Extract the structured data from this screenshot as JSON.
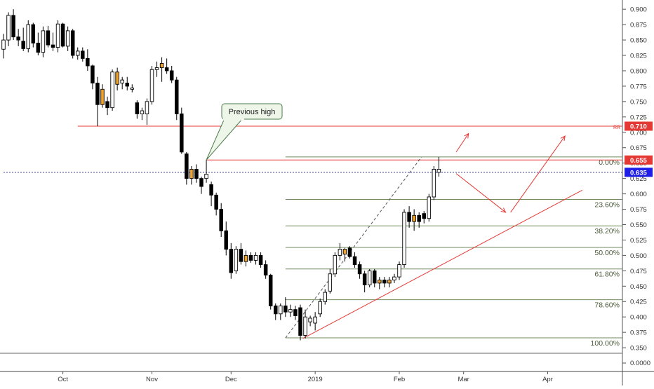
{
  "chart_data": {
    "type": "candlestick",
    "title": "",
    "price_axis": {
      "ticks": [
        "0.900",
        "0.875",
        "0.850",
        "0.825",
        "0.800",
        "0.775",
        "0.750",
        "0.725",
        "0.700",
        "0.675",
        "0.650",
        "0.625",
        "0.600",
        "0.575",
        "0.550",
        "0.525",
        "0.500",
        "0.475",
        "0.450",
        "0.425",
        "0.400",
        "0.375",
        "0.350"
      ],
      "ylim": [
        0.341,
        0.915
      ],
      "lower_pane_tick": "0.0000"
    },
    "time_axis": {
      "labels": [
        "Oct",
        "Nov",
        "Dec",
        "2019",
        "Feb",
        "Mar",
        "Apr"
      ],
      "label_bars": [
        12,
        30,
        46,
        63,
        80,
        93,
        110
      ]
    },
    "price_badges": [
      {
        "value": 0.71,
        "label": "0.710",
        "color": "#e53935",
        "text_color": "#ffffff"
      },
      {
        "value": 0.655,
        "label": "0.655",
        "color": "#e53935",
        "text_color": "#ffffff"
      },
      {
        "value": 0.635,
        "label": "0.635",
        "color": "#1e1ee6",
        "text_color": "#ffffff"
      }
    ],
    "rr_label": "RR",
    "horizontal_lines": [
      {
        "name": "resistance",
        "value": 0.71,
        "from_bar": 15,
        "color": "#e53935"
      },
      {
        "name": "previous-high-line",
        "value": 0.655,
        "from_bar": 41,
        "color": "#e53935"
      },
      {
        "name": "last-price-line",
        "value": 0.635,
        "from_bar": 0,
        "color": "#3a3aa0",
        "dashed": true
      }
    ],
    "callout": {
      "text": "Previous high",
      "anchor_bar": 41,
      "anchor_value": 0.655
    },
    "fibonacci": {
      "from_bar": 57,
      "levels": [
        {
          "label": "0.00%",
          "value": 0.66
        },
        {
          "label": "23.60%",
          "value": 0.591
        },
        {
          "label": "38.20%",
          "value": 0.548
        },
        {
          "label": "50.00%",
          "value": 0.513
        },
        {
          "label": "61.80%",
          "value": 0.478
        },
        {
          "label": "78.60%",
          "value": 0.428
        },
        {
          "label": "100.00%",
          "value": 0.366
        }
      ]
    },
    "trend_lines": [
      {
        "name": "ascending-trendline",
        "from": {
          "bar": 60.5,
          "value": 0.365
        },
        "to": {
          "bar": 117,
          "value": 0.606
        },
        "color": "#e53935",
        "dashed": false
      },
      {
        "name": "fib-diagonal",
        "from": {
          "bar": 57,
          "value": 0.366
        },
        "to": {
          "bar": 84.5,
          "value": 0.66
        },
        "color": "#555555",
        "dashed": true
      }
    ],
    "arrows": [
      {
        "name": "arrow-up-breakout",
        "from": {
          "bar": 91.5,
          "value": 0.668
        },
        "to": {
          "bar": 94,
          "value": 0.698
        }
      },
      {
        "name": "arrow-down-pullback",
        "from": {
          "bar": 91.5,
          "value": 0.633
        },
        "to": {
          "bar": 101.5,
          "value": 0.57
        }
      },
      {
        "name": "arrow-up-rally",
        "from": {
          "bar": 102.5,
          "value": 0.57
        },
        "to": {
          "bar": 113.5,
          "value": 0.694
        }
      }
    ],
    "candle_colors": {
      "up_body": "#ffffff",
      "up_border": "#000000",
      "down_body": "#000000",
      "neutral_body": "#f0a32a"
    },
    "candles": [
      {
        "o": 0.835,
        "h": 0.86,
        "l": 0.82,
        "c": 0.85
      },
      {
        "o": 0.85,
        "h": 0.895,
        "l": 0.84,
        "c": 0.89
      },
      {
        "o": 0.89,
        "h": 0.9,
        "l": 0.85,
        "c": 0.855
      },
      {
        "o": 0.855,
        "h": 0.868,
        "l": 0.84,
        "c": 0.85
      },
      {
        "o": 0.848,
        "h": 0.87,
        "l": 0.832,
        "c": 0.836
      },
      {
        "o": 0.836,
        "h": 0.882,
        "l": 0.83,
        "c": 0.875
      },
      {
        "o": 0.875,
        "h": 0.878,
        "l": 0.838,
        "c": 0.845
      },
      {
        "o": 0.845,
        "h": 0.862,
        "l": 0.825,
        "c": 0.83
      },
      {
        "o": 0.83,
        "h": 0.872,
        "l": 0.822,
        "c": 0.865
      },
      {
        "o": 0.865,
        "h": 0.873,
        "l": 0.838,
        "c": 0.842
      },
      {
        "o": 0.842,
        "h": 0.862,
        "l": 0.832,
        "c": 0.838
      },
      {
        "o": 0.838,
        "h": 0.882,
        "l": 0.83,
        "c": 0.876
      },
      {
        "o": 0.876,
        "h": 0.878,
        "l": 0.838,
        "c": 0.84
      },
      {
        "o": 0.84,
        "h": 0.872,
        "l": 0.832,
        "c": 0.865
      },
      {
        "o": 0.865,
        "h": 0.868,
        "l": 0.82,
        "c": 0.825
      },
      {
        "o": 0.825,
        "h": 0.838,
        "l": 0.818,
        "c": 0.832
      },
      {
        "o": 0.832,
        "h": 0.838,
        "l": 0.815,
        "c": 0.82
      },
      {
        "o": 0.82,
        "h": 0.835,
        "l": 0.8,
        "c": 0.808
      },
      {
        "o": 0.808,
        "h": 0.81,
        "l": 0.77,
        "c": 0.78
      },
      {
        "o": 0.78,
        "h": 0.79,
        "l": 0.71,
        "c": 0.745
      },
      {
        "o": 0.745,
        "h": 0.778,
        "l": 0.74,
        "c": 0.77,
        "neutral": true
      },
      {
        "o": 0.75,
        "h": 0.758,
        "l": 0.728,
        "c": 0.74
      },
      {
        "o": 0.74,
        "h": 0.802,
        "l": 0.735,
        "c": 0.798
      },
      {
        "o": 0.798,
        "h": 0.805,
        "l": 0.768,
        "c": 0.778,
        "neutral": true
      },
      {
        "o": 0.78,
        "h": 0.79,
        "l": 0.77,
        "c": 0.785
      },
      {
        "o": 0.78,
        "h": 0.79,
        "l": 0.768,
        "c": 0.775
      },
      {
        "o": 0.77,
        "h": 0.778,
        "l": 0.765,
        "c": 0.772
      },
      {
        "o": 0.748,
        "h": 0.752,
        "l": 0.722,
        "c": 0.73
      },
      {
        "o": 0.73,
        "h": 0.74,
        "l": 0.72,
        "c": 0.735
      },
      {
        "o": 0.73,
        "h": 0.755,
        "l": 0.712,
        "c": 0.75
      },
      {
        "o": 0.75,
        "h": 0.808,
        "l": 0.745,
        "c": 0.802
      },
      {
        "o": 0.802,
        "h": 0.815,
        "l": 0.79,
        "c": 0.805
      },
      {
        "o": 0.805,
        "h": 0.822,
        "l": 0.782,
        "c": 0.812,
        "neutral": true
      },
      {
        "o": 0.805,
        "h": 0.82,
        "l": 0.795,
        "c": 0.8
      },
      {
        "o": 0.8,
        "h": 0.808,
        "l": 0.78,
        "c": 0.785
      },
      {
        "o": 0.785,
        "h": 0.79,
        "l": 0.72,
        "c": 0.73
      },
      {
        "o": 0.73,
        "h": 0.74,
        "l": 0.665,
        "c": 0.668
      },
      {
        "o": 0.665,
        "h": 0.668,
        "l": 0.615,
        "c": 0.625
      },
      {
        "o": 0.625,
        "h": 0.645,
        "l": 0.615,
        "c": 0.64,
        "neutral": true
      },
      {
        "o": 0.64,
        "h": 0.648,
        "l": 0.618,
        "c": 0.625
      },
      {
        "o": 0.625,
        "h": 0.628,
        "l": 0.6,
        "c": 0.612
      },
      {
        "o": 0.625,
        "h": 0.655,
        "l": 0.618,
        "c": 0.632
      },
      {
        "o": 0.615,
        "h": 0.62,
        "l": 0.58,
        "c": 0.598
      },
      {
        "o": 0.598,
        "h": 0.602,
        "l": 0.565,
        "c": 0.575
      },
      {
        "o": 0.575,
        "h": 0.585,
        "l": 0.53,
        "c": 0.54
      },
      {
        "o": 0.54,
        "h": 0.555,
        "l": 0.5,
        "c": 0.51
      },
      {
        "o": 0.51,
        "h": 0.52,
        "l": 0.462,
        "c": 0.472
      },
      {
        "o": 0.475,
        "h": 0.515,
        "l": 0.47,
        "c": 0.51
      },
      {
        "o": 0.51,
        "h": 0.52,
        "l": 0.485,
        "c": 0.49
      },
      {
        "o": 0.49,
        "h": 0.508,
        "l": 0.482,
        "c": 0.5,
        "neutral": true
      },
      {
        "o": 0.5,
        "h": 0.505,
        "l": 0.488,
        "c": 0.492
      },
      {
        "o": 0.492,
        "h": 0.505,
        "l": 0.485,
        "c": 0.5
      },
      {
        "o": 0.5,
        "h": 0.505,
        "l": 0.48,
        "c": 0.485
      },
      {
        "o": 0.485,
        "h": 0.492,
        "l": 0.462,
        "c": 0.468
      },
      {
        "o": 0.468,
        "h": 0.47,
        "l": 0.412,
        "c": 0.418
      },
      {
        "o": 0.418,
        "h": 0.422,
        "l": 0.395,
        "c": 0.405
      },
      {
        "o": 0.405,
        "h": 0.422,
        "l": 0.395,
        "c": 0.418
      },
      {
        "o": 0.418,
        "h": 0.432,
        "l": 0.4,
        "c": 0.408
      },
      {
        "o": 0.408,
        "h": 0.42,
        "l": 0.4,
        "c": 0.412
      },
      {
        "o": 0.412,
        "h": 0.418,
        "l": 0.395,
        "c": 0.402
      },
      {
        "o": 0.415,
        "h": 0.42,
        "l": 0.362,
        "c": 0.37
      },
      {
        "o": 0.37,
        "h": 0.412,
        "l": 0.365,
        "c": 0.4
      },
      {
        "o": 0.392,
        "h": 0.402,
        "l": 0.385,
        "c": 0.398
      },
      {
        "o": 0.39,
        "h": 0.408,
        "l": 0.378,
        "c": 0.4
      },
      {
        "o": 0.405,
        "h": 0.43,
        "l": 0.4,
        "c": 0.425
      },
      {
        "o": 0.425,
        "h": 0.445,
        "l": 0.42,
        "c": 0.44
      },
      {
        "o": 0.442,
        "h": 0.478,
        "l": 0.438,
        "c": 0.47
      },
      {
        "o": 0.47,
        "h": 0.505,
        "l": 0.465,
        "c": 0.5
      },
      {
        "o": 0.5,
        "h": 0.52,
        "l": 0.492,
        "c": 0.51
      },
      {
        "o": 0.51,
        "h": 0.512,
        "l": 0.49,
        "c": 0.502,
        "neutral": true
      },
      {
        "o": 0.512,
        "h": 0.515,
        "l": 0.495,
        "c": 0.498
      },
      {
        "o": 0.498,
        "h": 0.505,
        "l": 0.48,
        "c": 0.485
      },
      {
        "o": 0.485,
        "h": 0.49,
        "l": 0.462,
        "c": 0.47
      },
      {
        "o": 0.47,
        "h": 0.475,
        "l": 0.44,
        "c": 0.452
      },
      {
        "o": 0.452,
        "h": 0.478,
        "l": 0.448,
        "c": 0.475
      },
      {
        "o": 0.475,
        "h": 0.478,
        "l": 0.448,
        "c": 0.455
      },
      {
        "o": 0.455,
        "h": 0.465,
        "l": 0.445,
        "c": 0.46,
        "neutral": true
      },
      {
        "o": 0.46,
        "h": 0.465,
        "l": 0.448,
        "c": 0.455
      },
      {
        "o": 0.455,
        "h": 0.465,
        "l": 0.448,
        "c": 0.46,
        "neutral": true
      },
      {
        "o": 0.46,
        "h": 0.47,
        "l": 0.455,
        "c": 0.465
      },
      {
        "o": 0.465,
        "h": 0.49,
        "l": 0.46,
        "c": 0.485
      },
      {
        "o": 0.485,
        "h": 0.575,
        "l": 0.48,
        "c": 0.57
      },
      {
        "o": 0.57,
        "h": 0.58,
        "l": 0.545,
        "c": 0.555
      },
      {
        "o": 0.555,
        "h": 0.575,
        "l": 0.54,
        "c": 0.565,
        "neutral": true
      },
      {
        "o": 0.565,
        "h": 0.57,
        "l": 0.545,
        "c": 0.555
      },
      {
        "o": 0.568,
        "h": 0.572,
        "l": 0.552,
        "c": 0.56
      },
      {
        "o": 0.56,
        "h": 0.6,
        "l": 0.555,
        "c": 0.595
      },
      {
        "o": 0.595,
        "h": 0.645,
        "l": 0.59,
        "c": 0.64
      },
      {
        "o": 0.635,
        "h": 0.66,
        "l": 0.628,
        "c": 0.64
      }
    ]
  }
}
